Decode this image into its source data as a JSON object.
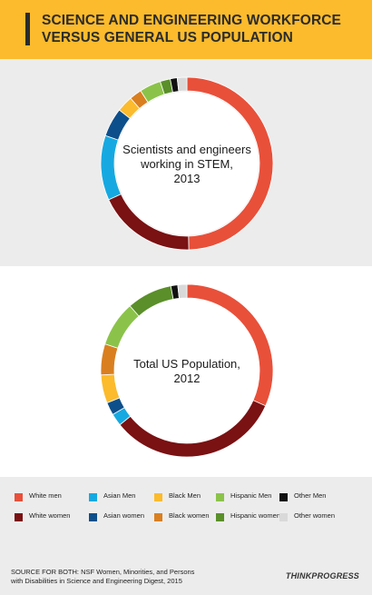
{
  "header": {
    "title_line1": "SCIENCE AND ENGINEERING WORKFORCE",
    "title_line2": "VERSUS GENERAL US POPULATION"
  },
  "colors": {
    "header_bg": "#fbbb2c",
    "panel_bg": "#ececec"
  },
  "chart_data": [
    {
      "type": "pie",
      "variant": "donut",
      "center_label": [
        "Scientists and engineers",
        "working in STEM,",
        "2013"
      ],
      "categories": [
        "White men",
        "White women",
        "Asian Men",
        "Asian women",
        "Black Men",
        "Black women",
        "Hispanic Men",
        "Hispanic women",
        "Other Men",
        "Other women"
      ],
      "values": [
        49.5,
        18.4,
        12.1,
        5.4,
        3.0,
        2.3,
        4.0,
        1.9,
        1.3,
        1.8
      ],
      "colors": [
        "#e8503a",
        "#7a1113",
        "#16a9e1",
        "#0d4f8b",
        "#fbbb2c",
        "#d97f20",
        "#8bc34a",
        "#5a8f29",
        "#111111",
        "#d9d9d9"
      ]
    },
    {
      "type": "pie",
      "variant": "donut",
      "center_label": [
        "Total US Population,",
        "2012"
      ],
      "categories": [
        "White men",
        "White women",
        "Asian Men",
        "Asian women",
        "Black Men",
        "Black women",
        "Hispanic Men",
        "Hispanic women",
        "Other Men",
        "Other women"
      ],
      "values": [
        31.7,
        32.5,
        2.3,
        2.4,
        5.3,
        5.8,
        8.5,
        8.5,
        1.3,
        1.7
      ],
      "colors": [
        "#e8503a",
        "#7a1113",
        "#16a9e1",
        "#0d4f8b",
        "#fbbb2c",
        "#d97f20",
        "#8bc34a",
        "#5a8f29",
        "#111111",
        "#d9d9d9"
      ]
    }
  ],
  "legend": [
    {
      "label": "White men",
      "color": "#e8503a"
    },
    {
      "label": "Asian Men",
      "color": "#16a9e1"
    },
    {
      "label": "Black Men",
      "color": "#fbbb2c"
    },
    {
      "label": "Hispanic Men",
      "color": "#8bc34a"
    },
    {
      "label": "Other Men",
      "color": "#111111"
    },
    {
      "label": "White women",
      "color": "#7a1113"
    },
    {
      "label": "Asian women",
      "color": "#0d4f8b"
    },
    {
      "label": "Black women",
      "color": "#d97f20"
    },
    {
      "label": "Hispanic women",
      "color": "#5a8f29"
    },
    {
      "label": "Other women",
      "color": "#d9d9d9"
    }
  ],
  "footer": {
    "source_line1": "SOURCE FOR BOTH: NSF Women, Minorities, and Persons",
    "source_line2": "with Disabilities in Science and Engineering Digest, 2015",
    "logo": "THINKPROGRESS"
  }
}
